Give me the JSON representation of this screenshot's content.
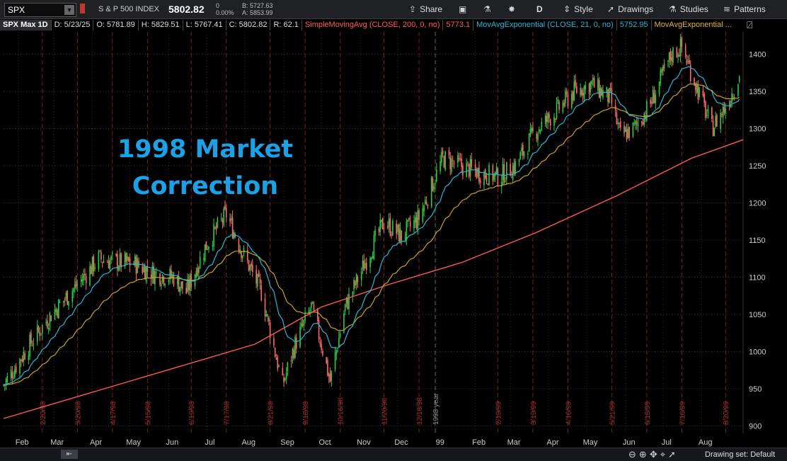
{
  "toolbar": {
    "symbol": "SPX",
    "symbol_name": "S & P 500 INDEX",
    "last_price": "5802.82",
    "change": "0",
    "change_pct": "0.00%",
    "bid": "B: 5727.63",
    "ask": "A: 5853.99",
    "share_label": "Share",
    "timeframe_label": "D",
    "style_label": "Style",
    "drawings_label": "Drawings",
    "studies_label": "Studies",
    "patterns_label": "Patterns"
  },
  "infobar": {
    "chart_label": "SPX Max 1D",
    "date": "D: 5/23/25",
    "open": "O: 5781.89",
    "high": "H: 5829.51",
    "low": "L: 5767.41",
    "close": "C: 5802.82",
    "range": "R: 62.1",
    "study1_label": "SimpleMovingAvg (CLOSE, 200, 0, no)",
    "study1_value": "5773.1",
    "study2_label": "MovAvgExponential (CLOSE, 21, 0, no)",
    "study2_value": "5752.95",
    "study3_label": "MovAvgExponential ..."
  },
  "annotation": {
    "line1": "1998 Market",
    "line2": "Correction"
  },
  "bottom": {
    "drawing_set": "Drawing set: Default"
  },
  "colors": {
    "up_candle": "#2ecc40",
    "down_candle": "#ff6b6b",
    "sma200": "#ff5a5a",
    "ema21": "#2bb6d6",
    "ema50": "#c9a227",
    "title": "#1ba1e6",
    "vline": "#7a1f1f"
  },
  "chart_data": {
    "type": "candlestick",
    "title": "SPX Max 1D",
    "ylim": [
      890,
      1430
    ],
    "y_ticks": [
      900,
      950,
      1000,
      1050,
      1100,
      1150,
      1200,
      1250,
      1300,
      1350,
      1400
    ],
    "x_ticks": [
      "Feb",
      "Mar",
      "Apr",
      "May",
      "Jun",
      "Jul",
      "Aug",
      "Sep",
      "Oct",
      "Nov",
      "Dec",
      "99",
      "Feb",
      "Mar",
      "Apr",
      "May",
      "Jun",
      "Jul",
      "Aug"
    ],
    "period_markers": [
      "2/20/98",
      "3/20/98",
      "4/17/98",
      "5/15/98",
      "6/19/98",
      "7/17/98",
      "8/21/98",
      "9/18/98",
      "10/16/98",
      "11/20/98",
      "12/18/98",
      "1998 year",
      "2/19/99",
      "3/19/99",
      "4/16/99",
      "5/21/99",
      "6/18/99",
      "7/16/99",
      "8/20/99"
    ],
    "close_path": [
      [
        "1998-01-20",
        955
      ],
      [
        "1998-02-10",
        1010
      ],
      [
        "1998-02-27",
        1050
      ],
      [
        "1998-03-20",
        1090
      ],
      [
        "1998-04-06",
        1125
      ],
      [
        "1998-04-22",
        1120
      ],
      [
        "1998-05-05",
        1118
      ],
      [
        "1998-05-20",
        1105
      ],
      [
        "1998-06-05",
        1100
      ],
      [
        "1998-06-15",
        1080
      ],
      [
        "1998-06-30",
        1140
      ],
      [
        "1998-07-17",
        1185
      ],
      [
        "1998-07-31",
        1130
      ],
      [
        "1998-08-14",
        1080
      ],
      [
        "1998-08-31",
        955
      ],
      [
        "1998-09-10",
        1010
      ],
      [
        "1998-09-23",
        1060
      ],
      [
        "1998-10-01",
        1010
      ],
      [
        "1998-10-08",
        960
      ],
      [
        "1998-10-20",
        1060
      ],
      [
        "1998-11-05",
        1120
      ],
      [
        "1998-11-20",
        1175
      ],
      [
        "1998-12-04",
        1155
      ],
      [
        "1998-12-18",
        1180
      ],
      [
        "1999-01-06",
        1260
      ],
      [
        "1999-01-20",
        1250
      ],
      [
        "1999-02-05",
        1240
      ],
      [
        "1999-02-20",
        1235
      ],
      [
        "1999-03-05",
        1250
      ],
      [
        "1999-03-20",
        1295
      ],
      [
        "1999-04-05",
        1320
      ],
      [
        "1999-04-21",
        1350
      ],
      [
        "1999-05-05",
        1360
      ],
      [
        "1999-05-20",
        1340
      ],
      [
        "1999-05-28",
        1290
      ],
      [
        "1999-06-08",
        1300
      ],
      [
        "1999-06-20",
        1330
      ],
      [
        "1999-07-08",
        1400
      ],
      [
        "1999-07-16",
        1410
      ],
      [
        "1999-07-27",
        1360
      ],
      [
        "1999-08-09",
        1300
      ],
      [
        "1999-08-20",
        1330
      ],
      [
        "1999-08-31",
        1370
      ]
    ],
    "series": [
      {
        "name": "SimpleMovingAvg (CLOSE, 200, 0, no)",
        "values": [
          [
            0,
            910
          ],
          [
            0.17,
            960
          ],
          [
            0.34,
            1010
          ],
          [
            0.43,
            1060
          ],
          [
            0.52,
            1090
          ],
          [
            0.62,
            1120
          ],
          [
            0.72,
            1160
          ],
          [
            0.83,
            1210
          ],
          [
            0.93,
            1260
          ],
          [
            1.0,
            1285
          ]
        ]
      },
      {
        "name": "MovAvgExponential (CLOSE, 21, 0, no)",
        "values": []
      },
      {
        "name": "MovAvgExponential ...",
        "values": []
      }
    ]
  }
}
